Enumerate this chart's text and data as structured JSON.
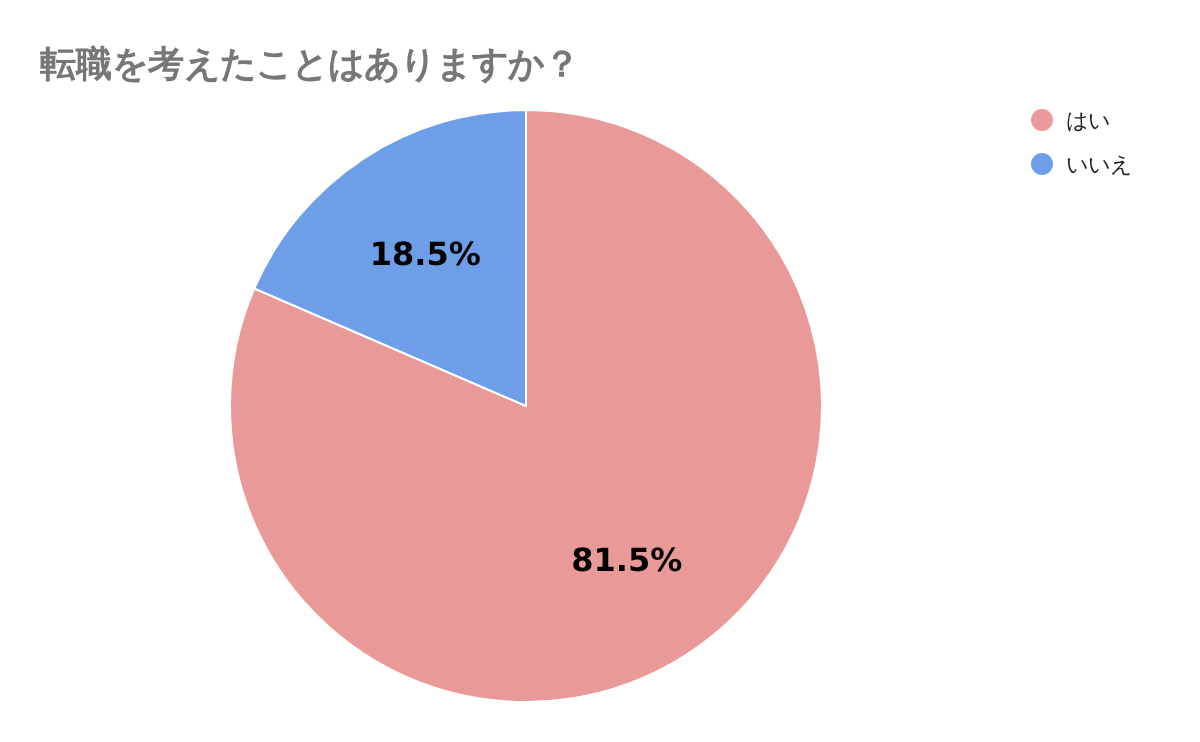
{
  "chart_data": {
    "type": "pie",
    "title": "転職を考えたことはありますか？",
    "categories": [
      "はい",
      "いいえ"
    ],
    "values": [
      81.5,
      18.5
    ],
    "colors": [
      "#e99a98",
      "#6e9ee8"
    ],
    "value_labels": [
      "81.5%",
      "18.5%"
    ],
    "legend": "top right"
  }
}
